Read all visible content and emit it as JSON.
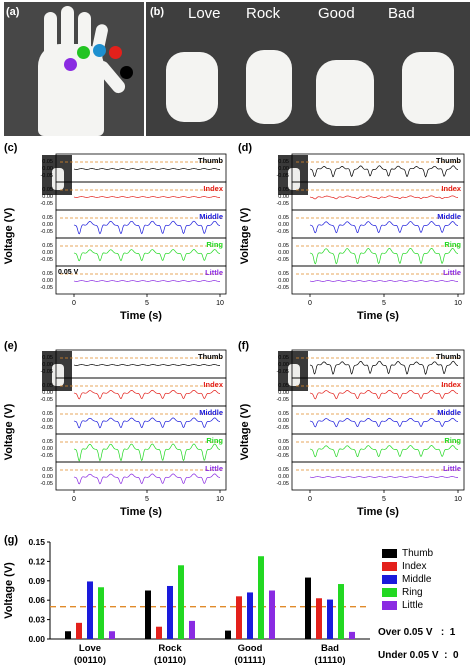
{
  "panels": {
    "a": "(a)",
    "b": "(b)",
    "c": "(c)",
    "d": "(d)",
    "e": "(e)",
    "f": "(f)",
    "g": "(g)"
  },
  "gestures": [
    "Love",
    "Rock",
    "Good",
    "Bad"
  ],
  "finger_colors": {
    "Thumb": "#000000",
    "Index": "#e3201b",
    "Middle": "#1a1adb",
    "Ring": "#22d822",
    "Little": "#8a2be2"
  },
  "voltage_panels": {
    "ylabel": "Voltage (V)",
    "xlabel": "Time (s)",
    "xticks": [
      "0",
      "5",
      "10"
    ],
    "yticks": [
      "0.05",
      "0.00",
      "-0.05",
      "-0.10",
      "-0.15"
    ],
    "channels": [
      "Thumb",
      "Index",
      "Middle",
      "Ring",
      "Little"
    ],
    "threshold_label": "0.05 V"
  },
  "chart_data": [
    {
      "type": "line",
      "panel": "(c)",
      "gesture": "Love",
      "xlabel": "Time (s)",
      "ylabel": "Voltage (V)",
      "xlim": [
        0,
        10
      ],
      "series": [
        {
          "name": "Thumb",
          "amplitude": 0.0,
          "peaks": 0
        },
        {
          "name": "Index",
          "amplitude": 0.005,
          "peaks": 0
        },
        {
          "name": "Middle",
          "amplitude": 0.09,
          "peaks": 7
        },
        {
          "name": "Ring",
          "amplitude": 0.08,
          "peaks": 7
        },
        {
          "name": "Little",
          "amplitude": 0.0,
          "peaks": 0
        }
      ]
    },
    {
      "type": "line",
      "panel": "(d)",
      "gesture": "Rock",
      "xlabel": "Time (s)",
      "ylabel": "Voltage (V)",
      "xlim": [
        0,
        10
      ],
      "series": [
        {
          "name": "Thumb",
          "amplitude": 0.075,
          "peaks": 8
        },
        {
          "name": "Index",
          "amplitude": 0.02,
          "peaks": 7
        },
        {
          "name": "Middle",
          "amplitude": 0.08,
          "peaks": 7
        },
        {
          "name": "Ring",
          "amplitude": 0.11,
          "peaks": 7
        },
        {
          "name": "Little",
          "amplitude": 0.0,
          "peaks": 0
        }
      ]
    },
    {
      "type": "line",
      "panel": "(e)",
      "gesture": "Good",
      "xlabel": "Time (s)",
      "ylabel": "Voltage (V)",
      "xlim": [
        0,
        10
      ],
      "series": [
        {
          "name": "Thumb",
          "amplitude": 0.0,
          "peaks": 0
        },
        {
          "name": "Index",
          "amplitude": 0.06,
          "peaks": 7
        },
        {
          "name": "Middle",
          "amplitude": 0.07,
          "peaks": 7
        },
        {
          "name": "Ring",
          "amplitude": 0.12,
          "peaks": 7
        },
        {
          "name": "Little",
          "amplitude": 0.07,
          "peaks": 7
        }
      ]
    },
    {
      "type": "line",
      "panel": "(f)",
      "gesture": "Bad",
      "xlabel": "Time (s)",
      "ylabel": "Voltage (V)",
      "xlim": [
        0,
        10
      ],
      "series": [
        {
          "name": "Thumb",
          "amplitude": 0.09,
          "peaks": 8
        },
        {
          "name": "Index",
          "amplitude": 0.06,
          "peaks": 7
        },
        {
          "name": "Middle",
          "amplitude": 0.06,
          "peaks": 7
        },
        {
          "name": "Ring",
          "amplitude": 0.08,
          "peaks": 7
        },
        {
          "name": "Little",
          "amplitude": 0.0,
          "peaks": 0
        }
      ]
    },
    {
      "type": "bar",
      "panel": "(g)",
      "ylabel": "Voltage (V)",
      "ylim": [
        0,
        0.15
      ],
      "yticks": [
        "0.00",
        "0.03",
        "0.06",
        "0.09",
        "0.12",
        "0.15"
      ],
      "categories": [
        "Love",
        "Rock",
        "Good",
        "Bad"
      ],
      "codes": [
        "(00110)",
        "(10110)",
        "(01111)",
        "(11110)"
      ],
      "threshold": 0.05,
      "series": [
        {
          "name": "Thumb",
          "values": [
            0.012,
            0.075,
            0.013,
            0.095
          ]
        },
        {
          "name": "Index",
          "values": [
            0.025,
            0.019,
            0.066,
            0.063
          ]
        },
        {
          "name": "Middle",
          "values": [
            0.089,
            0.082,
            0.072,
            0.061
          ]
        },
        {
          "name": "Ring",
          "values": [
            0.08,
            0.114,
            0.128,
            0.085
          ]
        },
        {
          "name": "Little",
          "values": [
            0.012,
            0.028,
            0.075,
            0.011
          ]
        }
      ],
      "rules": [
        "Over 0.05 V   :  1",
        "Under 0.05 V  :  0"
      ]
    }
  ]
}
